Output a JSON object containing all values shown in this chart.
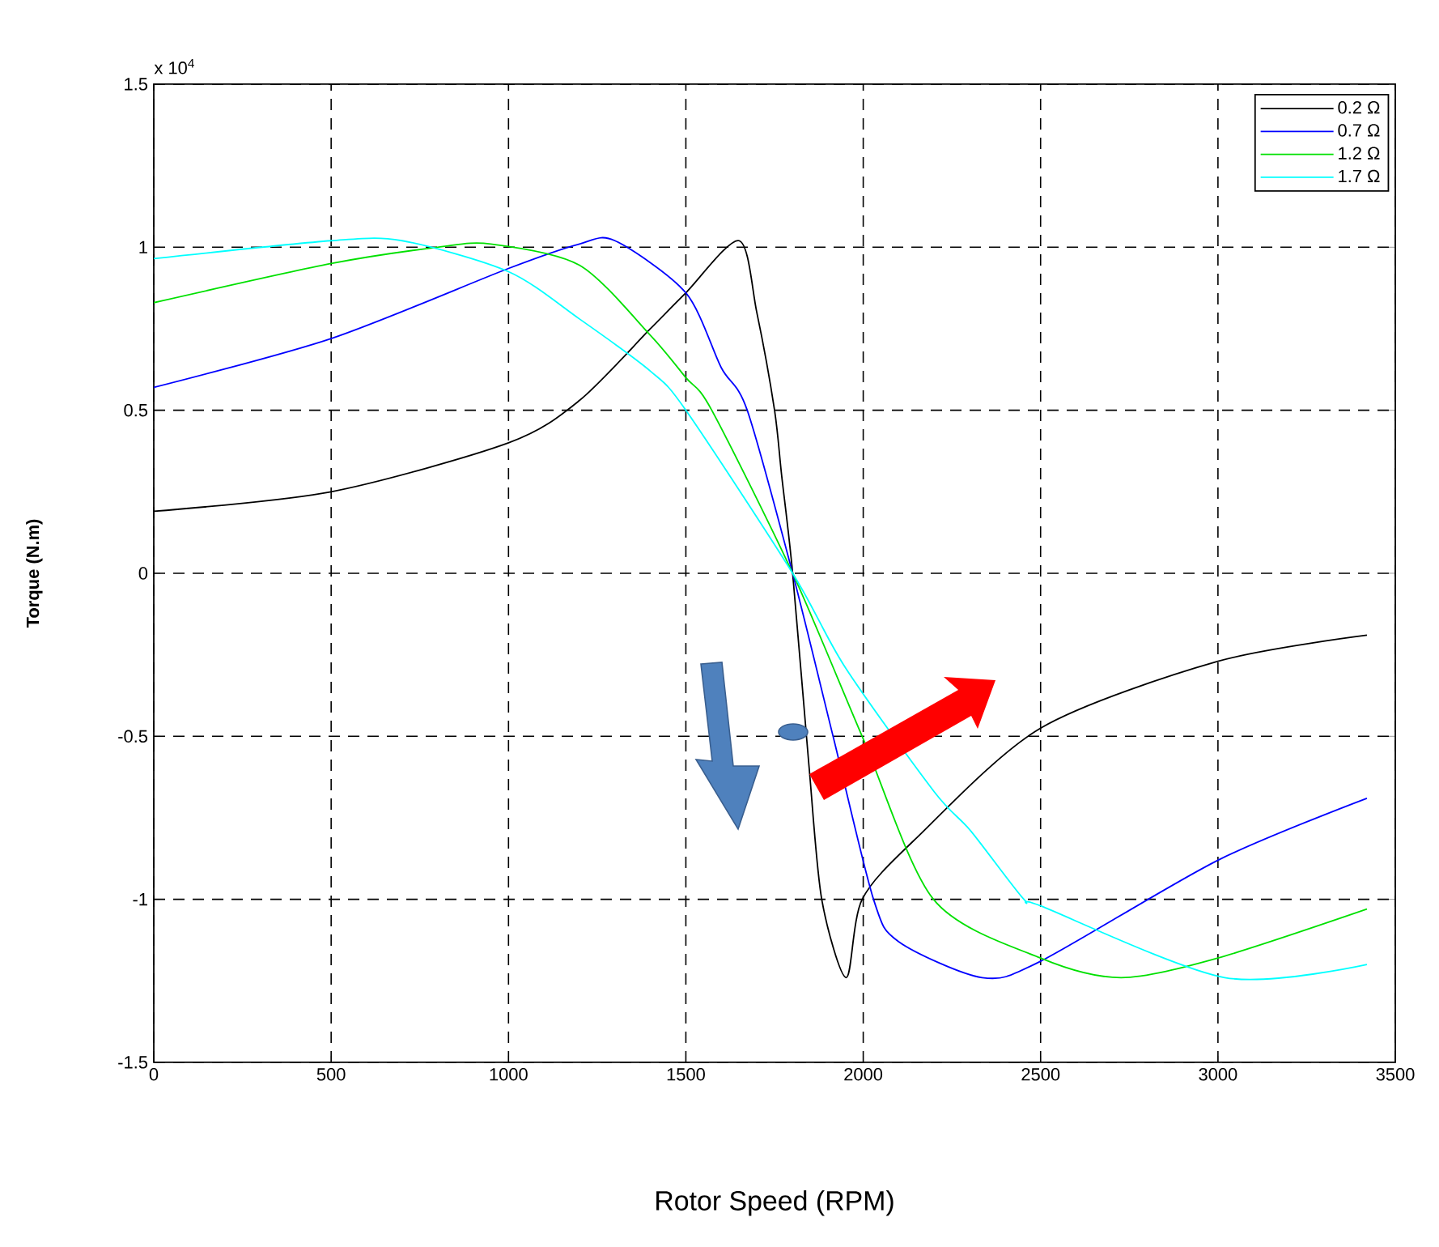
{
  "chart_data": {
    "type": "line",
    "xlabel": "Rotor Speed (RPM)",
    "ylabel": "Torque (N.m)",
    "annotations": [
      "x 10$^{4}$"
    ],
    "xlim": [
      0,
      3500
    ],
    "xticks": [
      0,
      500,
      1000,
      1500,
      2000,
      2500,
      3000,
      3500
    ],
    "ylim": [
      -1.5,
      1.5
    ],
    "yticks": [
      -1.5,
      -1,
      -0.5,
      0,
      0.5,
      1,
      1.5
    ],
    "grid": true,
    "legend": "top right",
    "line_style": "solid",
    "series": [
      {
        "name": "0.2 Ω",
        "color": "#000000",
        "x": [
          0,
          500,
          1000,
          1200,
          1400,
          1500,
          1650,
          1700,
          1750,
          1770,
          1801,
          1847,
          1883,
          1952,
          1997,
          2152,
          2500,
          3000,
          3420
        ],
        "values": [
          0.19,
          0.25,
          0.4,
          0.53,
          0.75,
          0.86,
          1.02,
          0.8,
          0.5,
          0.3,
          0,
          -0.59,
          -1.0,
          -1.24,
          -1.0,
          -0.81,
          -0.475,
          -0.27,
          -0.19
        ]
      },
      {
        "name": "0.7 Ω",
        "color": "#0000ff",
        "x": [
          0,
          500,
          1000,
          1200,
          1300,
          1500,
          1600,
          1673,
          1801,
          1915,
          2029,
          2100,
          2335,
          2500,
          3000,
          3420
        ],
        "values": [
          0.57,
          0.72,
          0.935,
          1.01,
          1.02,
          0.86,
          0.63,
          0.5,
          0,
          -0.5,
          -1.0,
          -1.13,
          -1.24,
          -1.19,
          -0.88,
          -0.69
        ]
      },
      {
        "name": "1.2 Ω",
        "color": "#00e000",
        "x": [
          0,
          500,
          800,
          950,
          1200,
          1400,
          1500,
          1573,
          1801,
          1997,
          2198,
          2500,
          2727,
          3000,
          3420
        ],
        "values": [
          0.83,
          0.95,
          1.0,
          1.01,
          0.945,
          0.73,
          0.6,
          0.5,
          0,
          -0.5,
          -1.0,
          -1.18,
          -1.24,
          -1.18,
          -1.03
        ]
      },
      {
        "name": "1.7 Ω",
        "color": "#00ffff",
        "x": [
          0,
          500,
          700,
          1000,
          1200,
          1400,
          1500,
          1801,
          1950,
          2200,
          2303,
          2453,
          2500,
          3019,
          3420
        ],
        "values": [
          0.965,
          1.02,
          1.02,
          0.925,
          0.78,
          0.62,
          0.5,
          0,
          -0.29,
          -0.67,
          -0.79,
          -1.0,
          -1.02,
          -1.24,
          -1.2
        ]
      }
    ]
  }
}
